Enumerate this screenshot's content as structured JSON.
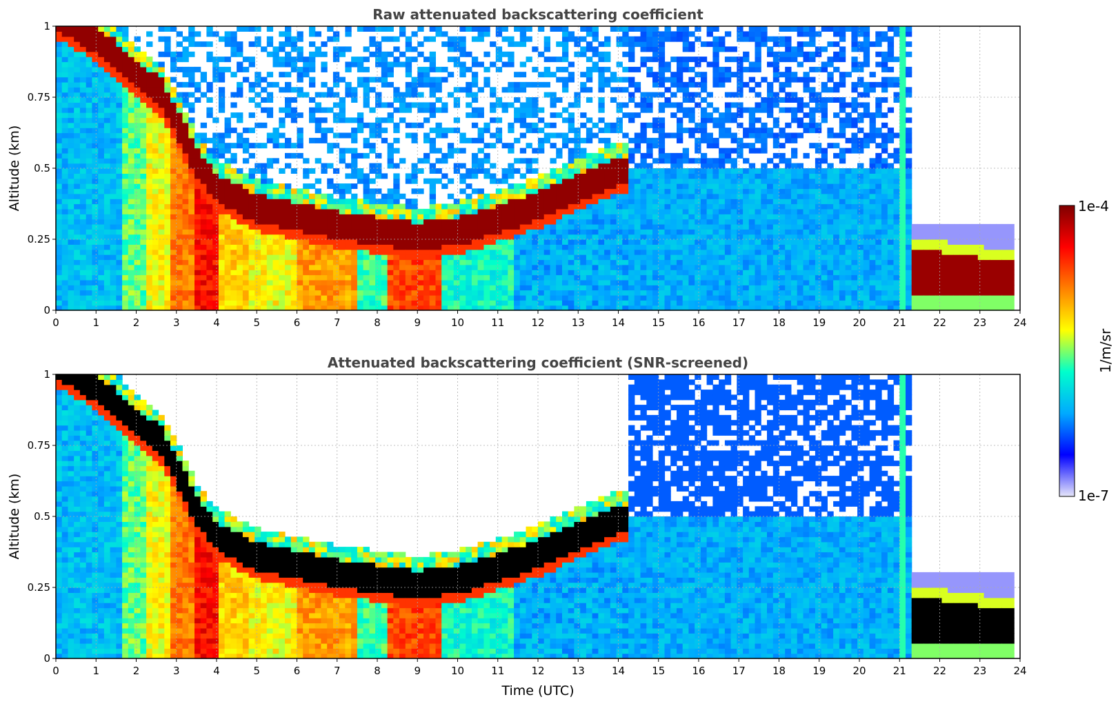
{
  "chart_data": [
    {
      "type": "heatmap",
      "title": "Raw attenuated backscattering coefficient",
      "xlabel": "",
      "ylabel": "Altitude (km)",
      "xlim": [
        0,
        24
      ],
      "ylim": [
        0,
        1
      ],
      "xticks": [
        "0",
        "1",
        "2",
        "3",
        "4",
        "5",
        "6",
        "7",
        "8",
        "9",
        "10",
        "11",
        "12",
        "13",
        "14",
        "15",
        "16",
        "17",
        "18",
        "19",
        "20",
        "21",
        "22",
        "23",
        "24"
      ],
      "yticks": [
        "0",
        "0.25",
        "0.5",
        "0.75",
        "1"
      ],
      "grid": true,
      "screened": false,
      "cloud_base_km": [
        {
          "t": 0.1,
          "z": 0.98
        },
        {
          "t": 0.7,
          "z": 0.93
        },
        {
          "t": 1.4,
          "z": 0.86
        },
        {
          "t": 2.0,
          "z": 0.78
        },
        {
          "t": 2.6,
          "z": 0.72
        },
        {
          "t": 3.0,
          "z": 0.62
        },
        {
          "t": 3.5,
          "z": 0.47
        },
        {
          "t": 4.0,
          "z": 0.38
        },
        {
          "t": 5.0,
          "z": 0.31
        },
        {
          "t": 6.0,
          "z": 0.28
        },
        {
          "t": 7.0,
          "z": 0.25
        },
        {
          "t": 8.0,
          "z": 0.23
        },
        {
          "t": 9.0,
          "z": 0.21
        },
        {
          "t": 10.0,
          "z": 0.23
        },
        {
          "t": 11.0,
          "z": 0.27
        },
        {
          "t": 12.0,
          "z": 0.32
        },
        {
          "t": 13.0,
          "z": 0.38
        },
        {
          "t": 14.0,
          "z": 0.44
        }
      ]
    },
    {
      "type": "heatmap",
      "title": "Attenuated backscattering coefficient (SNR-screened)",
      "xlabel": "Time (UTC)",
      "ylabel": "Altitude (km)",
      "xlim": [
        0,
        24
      ],
      "ylim": [
        0,
        1
      ],
      "xticks": [
        "0",
        "1",
        "2",
        "3",
        "4",
        "5",
        "6",
        "7",
        "8",
        "9",
        "10",
        "11",
        "12",
        "13",
        "14",
        "15",
        "16",
        "17",
        "18",
        "19",
        "20",
        "21",
        "22",
        "23",
        "24"
      ],
      "yticks": [
        "0",
        "0.25",
        "0.5",
        "0.75",
        "1"
      ],
      "grid": true,
      "screened": true,
      "cloud_base_km": [
        {
          "t": 0.1,
          "z": 0.98
        },
        {
          "t": 0.7,
          "z": 0.93
        },
        {
          "t": 1.4,
          "z": 0.86
        },
        {
          "t": 2.0,
          "z": 0.78
        },
        {
          "t": 2.6,
          "z": 0.72
        },
        {
          "t": 3.0,
          "z": 0.62
        },
        {
          "t": 3.5,
          "z": 0.47
        },
        {
          "t": 4.0,
          "z": 0.38
        },
        {
          "t": 5.0,
          "z": 0.31
        },
        {
          "t": 6.0,
          "z": 0.28
        },
        {
          "t": 7.0,
          "z": 0.25
        },
        {
          "t": 8.0,
          "z": 0.23
        },
        {
          "t": 9.0,
          "z": 0.21
        },
        {
          "t": 10.0,
          "z": 0.23
        },
        {
          "t": 11.0,
          "z": 0.27
        },
        {
          "t": 12.0,
          "z": 0.32
        },
        {
          "t": 13.0,
          "z": 0.38
        },
        {
          "t": 14.0,
          "z": 0.44
        }
      ]
    }
  ],
  "colorbar": {
    "label": "1/m/sr",
    "max_label": "1e-4",
    "min_label": "1e-7",
    "scale": "log",
    "colormap": [
      "#e6e6fa",
      "#0000ff",
      "#00aaff",
      "#00ffcc",
      "#ffff00",
      "#ff8000",
      "#ff0000",
      "#7f0000"
    ]
  }
}
